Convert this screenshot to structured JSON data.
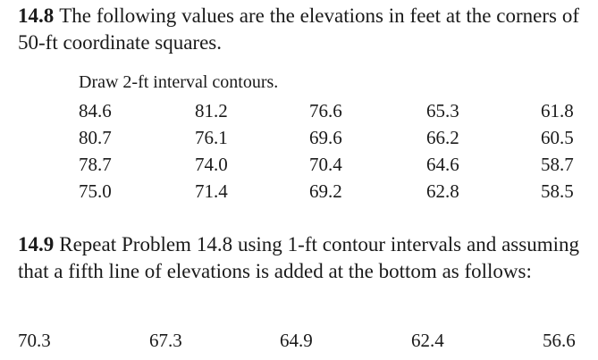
{
  "problem_14_8": {
    "number": "14.8",
    "text": "The following values are the elevations in feet at the corners of 50-ft coordinate squares.",
    "instruction": "Draw 2-ft interval contours.",
    "rows": [
      [
        "84.6",
        "81.2",
        "76.6",
        "65.3",
        "61.8"
      ],
      [
        "80.7",
        "76.1",
        "69.6",
        "66.2",
        "60.5"
      ],
      [
        "78.7",
        "74.0",
        "70.4",
        "64.6",
        "58.7"
      ],
      [
        "75.0",
        "71.4",
        "69.2",
        "62.8",
        "58.5"
      ]
    ]
  },
  "problem_14_9": {
    "number": "14.9",
    "text": "Repeat Problem 14.8 using 1-ft contour intervals and assuming that a fifth line of elevations is added at the bottom as follows:",
    "row": [
      "70.3",
      "67.3",
      "64.9",
      "62.4",
      "56.6"
    ]
  }
}
